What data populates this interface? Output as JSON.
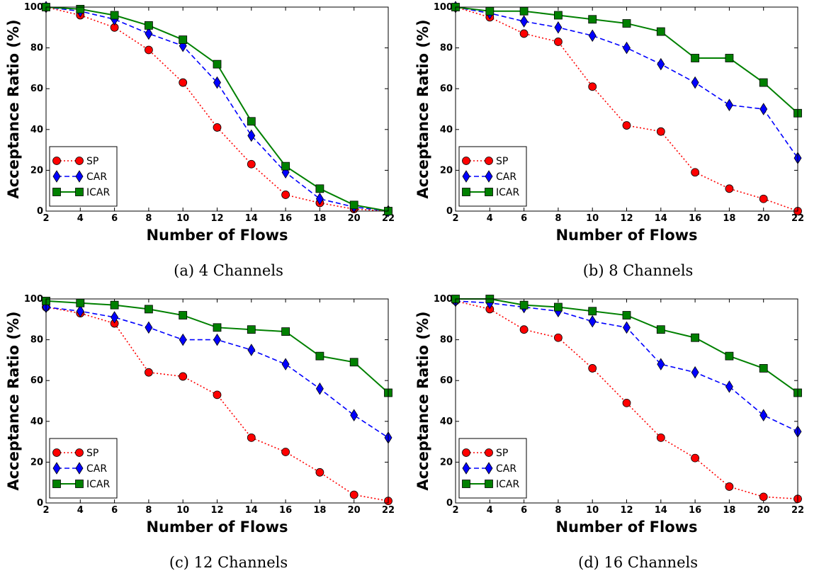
{
  "colors": {
    "SP": "#ff0000",
    "CAR": "#0000ff",
    "ICAR": "#008000"
  },
  "chart_data": [
    {
      "type": "line",
      "caption": "(a) 4 Channels",
      "xlabel": "Number of Flows",
      "ylabel": "Acceptance Ratio (%)",
      "x": [
        2,
        4,
        6,
        8,
        10,
        12,
        14,
        16,
        18,
        20,
        22
      ],
      "xlim": [
        2,
        22
      ],
      "ylim": [
        0,
        100
      ],
      "xticks": [
        "2",
        "4",
        "6",
        "8",
        "10",
        "12",
        "14",
        "16",
        "18",
        "20",
        "22"
      ],
      "yticks": [
        "0",
        "20",
        "40",
        "60",
        "80",
        "100"
      ],
      "legend_position": "lower-left",
      "series": [
        {
          "name": "SP",
          "style": "dotted",
          "marker": "circle",
          "values": [
            100,
            96,
            90,
            79,
            63,
            41,
            23,
            8,
            4,
            1,
            0
          ]
        },
        {
          "name": "CAR",
          "style": "dashed",
          "marker": "diamond",
          "values": [
            100,
            98,
            94,
            87,
            81,
            63,
            37,
            19,
            6,
            2,
            0
          ]
        },
        {
          "name": "ICAR",
          "style": "solid",
          "marker": "square",
          "values": [
            100,
            99,
            96,
            91,
            84,
            72,
            44,
            22,
            11,
            3,
            0
          ]
        }
      ]
    },
    {
      "type": "line",
      "caption": "(b) 8 Channels",
      "xlabel": "Number of Flows",
      "ylabel": "Acceptance Ratio (%)",
      "x": [
        2,
        4,
        6,
        8,
        10,
        12,
        14,
        16,
        18,
        20,
        22
      ],
      "xlim": [
        2,
        22
      ],
      "ylim": [
        0,
        100
      ],
      "xticks": [
        "2",
        "4",
        "6",
        "8",
        "10",
        "12",
        "14",
        "16",
        "18",
        "20",
        "22"
      ],
      "yticks": [
        "0",
        "20",
        "40",
        "60",
        "80",
        "100"
      ],
      "legend_position": "lower-left",
      "series": [
        {
          "name": "SP",
          "style": "dotted",
          "marker": "circle",
          "values": [
            100,
            95,
            87,
            83,
            61,
            42,
            39,
            19,
            11,
            6,
            0
          ]
        },
        {
          "name": "CAR",
          "style": "dashed",
          "marker": "diamond",
          "values": [
            100,
            97,
            93,
            90,
            86,
            80,
            72,
            63,
            52,
            50,
            26
          ]
        },
        {
          "name": "ICAR",
          "style": "solid",
          "marker": "square",
          "values": [
            100,
            98,
            98,
            96,
            94,
            92,
            88,
            75,
            75,
            63,
            48
          ]
        }
      ]
    },
    {
      "type": "line",
      "caption": "(c) 12 Channels",
      "xlabel": "Number of Flows",
      "ylabel": "Acceptance Ratio (%)",
      "x": [
        2,
        4,
        6,
        8,
        10,
        12,
        14,
        16,
        18,
        20,
        22
      ],
      "xlim": [
        2,
        22
      ],
      "ylim": [
        0,
        100
      ],
      "xticks": [
        "2",
        "4",
        "6",
        "8",
        "10",
        "12",
        "14",
        "16",
        "18",
        "20",
        "22"
      ],
      "yticks": [
        "0",
        "20",
        "40",
        "60",
        "80",
        "100"
      ],
      "legend_position": "lower-left",
      "series": [
        {
          "name": "SP",
          "style": "dotted",
          "marker": "circle",
          "values": [
            96,
            93,
            88,
            64,
            62,
            53,
            32,
            25,
            15,
            4,
            1
          ]
        },
        {
          "name": "CAR",
          "style": "dashed",
          "marker": "diamond",
          "values": [
            96,
            94,
            91,
            86,
            80,
            80,
            75,
            68,
            56,
            43,
            32
          ]
        },
        {
          "name": "ICAR",
          "style": "solid",
          "marker": "square",
          "values": [
            99,
            98,
            97,
            95,
            92,
            86,
            85,
            84,
            72,
            69,
            54
          ]
        }
      ]
    },
    {
      "type": "line",
      "caption": "(d) 16 Channels",
      "xlabel": "Number of Flows",
      "ylabel": "Acceptance Ratio (%)",
      "x": [
        2,
        4,
        6,
        8,
        10,
        12,
        14,
        16,
        18,
        20,
        22
      ],
      "xlim": [
        2,
        22
      ],
      "ylim": [
        0,
        100
      ],
      "xticks": [
        "2",
        "4",
        "6",
        "8",
        "10",
        "12",
        "14",
        "16",
        "18",
        "20",
        "22"
      ],
      "yticks": [
        "0",
        "20",
        "40",
        "60",
        "80",
        "100"
      ],
      "legend_position": "lower-left",
      "series": [
        {
          "name": "SP",
          "style": "dotted",
          "marker": "circle",
          "values": [
            99,
            95,
            85,
            81,
            66,
            49,
            32,
            22,
            8,
            3,
            2
          ]
        },
        {
          "name": "CAR",
          "style": "dashed",
          "marker": "diamond",
          "values": [
            99,
            98,
            96,
            94,
            89,
            86,
            68,
            64,
            57,
            43,
            35
          ]
        },
        {
          "name": "ICAR",
          "style": "solid",
          "marker": "square",
          "values": [
            100,
            100,
            97,
            96,
            94,
            92,
            85,
            81,
            72,
            66,
            54
          ]
        }
      ]
    }
  ]
}
